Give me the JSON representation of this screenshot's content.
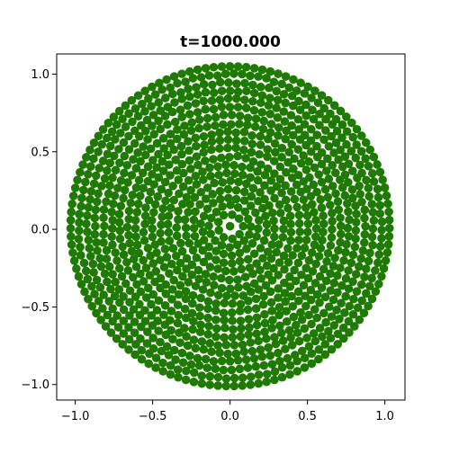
{
  "chart_data": {
    "type": "scatter",
    "title": "t=1000.000",
    "xlabel": "",
    "ylabel": "",
    "xlim": [
      -1.12,
      1.13
    ],
    "ylim": [
      -1.1,
      1.13
    ],
    "xticks": [
      -1.0,
      -0.5,
      0.0,
      0.5,
      1.0
    ],
    "xtick_labels": [
      "−1.0",
      "−0.5",
      "0.0",
      "0.5",
      "1.0"
    ],
    "yticks": [
      -1.0,
      -0.5,
      0.0,
      0.5,
      1.0
    ],
    "ytick_labels": [
      "−1.0",
      "−0.5",
      "0.0",
      "0.5",
      "1.0"
    ],
    "grid": false,
    "series": [
      {
        "color": "#1e7a00",
        "cluster": {
          "shape": "disk",
          "center": [
            0.0,
            0.02
          ],
          "radius": 1.03,
          "point_count": 1200,
          "arrangement": "concentric rings"
        }
      }
    ]
  }
}
